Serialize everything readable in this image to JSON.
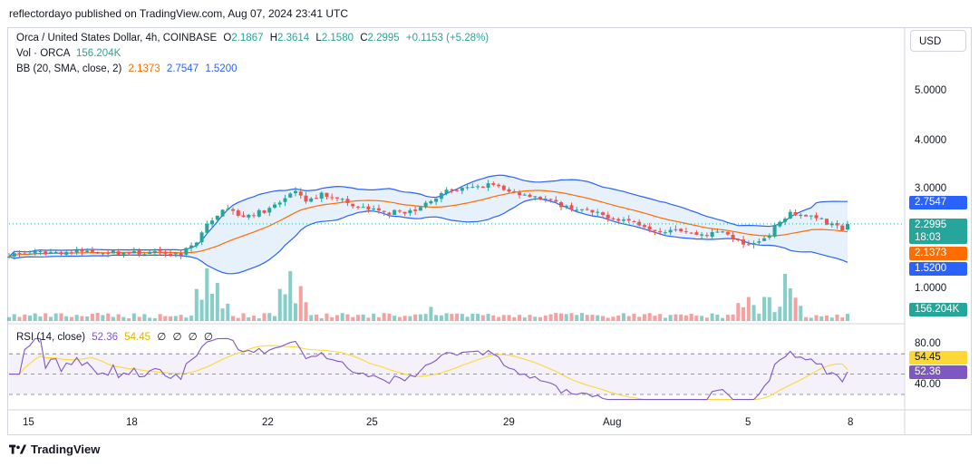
{
  "header": {
    "attribution": "reflectordayo published on TradingView.com, Aug 07, 2024 23:41 UTC"
  },
  "legend": {
    "symbol": "Orca / United States Dollar, 4h, COINBASE",
    "o_label": "O",
    "o": "2.1867",
    "h_label": "H",
    "h": "2.3614",
    "l_label": "L",
    "l": "2.1580",
    "c_label": "C",
    "c": "2.2995",
    "change": "+0.1153 (+5.28%)",
    "vol_label": "Vol · ORCA",
    "vol": "156.204K",
    "bb_label": "BB (20, SMA, close, 2)",
    "bb_mid": "2.1373",
    "bb_upper": "2.7547",
    "bb_lower": "1.5200",
    "rsi_label": "RSI (14, close)",
    "rsi": "52.36",
    "rsi_ma": "54.45",
    "rsi_extras": "∅ ∅ ∅ ∅"
  },
  "currency_button": "USD",
  "price_axis": {
    "labels": [
      "5.0000",
      "4.0000",
      "3.0000",
      "1.0000"
    ]
  },
  "price_tags": {
    "bb_upper": "2.7547",
    "last": "2.2995",
    "countdown": "18:03",
    "bb_mid": "2.1373",
    "bb_lower": "1.5200",
    "volume": "156.204K"
  },
  "rsi_axis": {
    "labels": [
      "80.00",
      "40.00"
    ],
    "tag_ma": "54.45",
    "tag_rsi": "52.36"
  },
  "time_axis": {
    "labels": [
      "15",
      "18",
      "22",
      "25",
      "29",
      "Aug",
      "5",
      "8"
    ]
  },
  "footer": {
    "brand": "TradingView"
  },
  "colors": {
    "up": "#26a69a",
    "down": "#ef5350",
    "bb_band": "#2962ff",
    "bb_basis": "#ff6d00",
    "bb_fill": "#e3effa",
    "rsi": "#7e57c2",
    "rsi_ma": "#fdd835",
    "rsi_fill": "#ede7f6"
  },
  "chart_data": {
    "type": "candlestick",
    "timeframe": "4h",
    "x_range": [
      "Jul 14",
      "Aug 7"
    ],
    "last_candle": {
      "open": 2.1867,
      "high": 2.3614,
      "low": 2.158,
      "close": 2.2995,
      "volume": "156.204K"
    },
    "close_path": [
      [
        0,
        1.68
      ],
      [
        8,
        1.72
      ],
      [
        16,
        1.74
      ],
      [
        22,
        1.71
      ],
      [
        28,
        1.71
      ],
      [
        33,
        1.69
      ],
      [
        36,
        1.95
      ],
      [
        38,
        2.3
      ],
      [
        40,
        2.45
      ],
      [
        42,
        2.65
      ],
      [
        44,
        2.45
      ],
      [
        47,
        2.5
      ],
      [
        50,
        2.6
      ],
      [
        53,
        2.8
      ],
      [
        55,
        2.95
      ],
      [
        57,
        2.75
      ],
      [
        60,
        2.9
      ],
      [
        63,
        2.85
      ],
      [
        66,
        2.65
      ],
      [
        69,
        2.6
      ],
      [
        72,
        2.52
      ],
      [
        75,
        2.55
      ],
      [
        78,
        2.55
      ],
      [
        81,
        2.8
      ],
      [
        84,
        2.95
      ],
      [
        87,
        3.0
      ],
      [
        90,
        3.05
      ],
      [
        93,
        3.12
      ],
      [
        95,
        2.97
      ],
      [
        98,
        2.92
      ],
      [
        101,
        2.87
      ],
      [
        104,
        2.75
      ],
      [
        107,
        2.65
      ],
      [
        110,
        2.58
      ],
      [
        113,
        2.5
      ],
      [
        116,
        2.42
      ],
      [
        119,
        2.37
      ],
      [
        122,
        2.27
      ],
      [
        125,
        2.15
      ],
      [
        128,
        2.22
      ],
      [
        131,
        2.1
      ],
      [
        134,
        2.08
      ],
      [
        137,
        2.15
      ],
      [
        140,
        1.95
      ],
      [
        142,
        1.83
      ],
      [
        144,
        1.95
      ],
      [
        146,
        2.1
      ],
      [
        148,
        2.35
      ],
      [
        150,
        2.55
      ],
      [
        152,
        2.48
      ],
      [
        155,
        2.45
      ],
      [
        157,
        2.3
      ],
      [
        160,
        2.2
      ],
      [
        161,
        2.2995
      ]
    ],
    "bollinger": {
      "period": 20,
      "stddev": 2,
      "basis": "SMA",
      "last_upper": 2.7547,
      "last_basis": 2.1373,
      "last_lower": 1.52
    },
    "volume_last": "156.204K",
    "rsi": {
      "period": 14,
      "last": 52.36,
      "ma_last": 54.45,
      "levels": [
        70,
        50,
        30
      ]
    },
    "price_axis_ticks": [
      5.0,
      4.0,
      3.0,
      1.0
    ],
    "rsi_axis_ticks": [
      80,
      40
    ]
  }
}
